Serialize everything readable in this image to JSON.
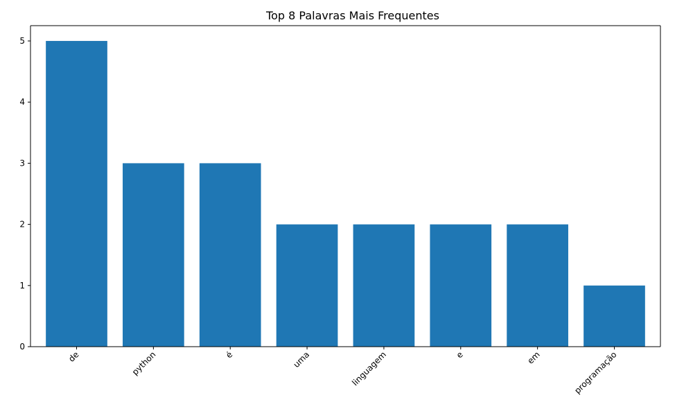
{
  "chart_data": {
    "type": "bar",
    "title": "Top 8 Palavras Mais Frequentes",
    "xlabel": "",
    "ylabel": "",
    "categories": [
      "de",
      "python",
      "é",
      "uma",
      "linguagem",
      "e",
      "em",
      "programação"
    ],
    "values": [
      5,
      3,
      3,
      2,
      2,
      2,
      2,
      1
    ],
    "ylim": [
      0,
      5.25
    ],
    "yticks": [
      "0",
      "1",
      "2",
      "3",
      "4",
      "5"
    ],
    "bar_color": "#1f77b4",
    "grid": false,
    "legend": "none"
  }
}
